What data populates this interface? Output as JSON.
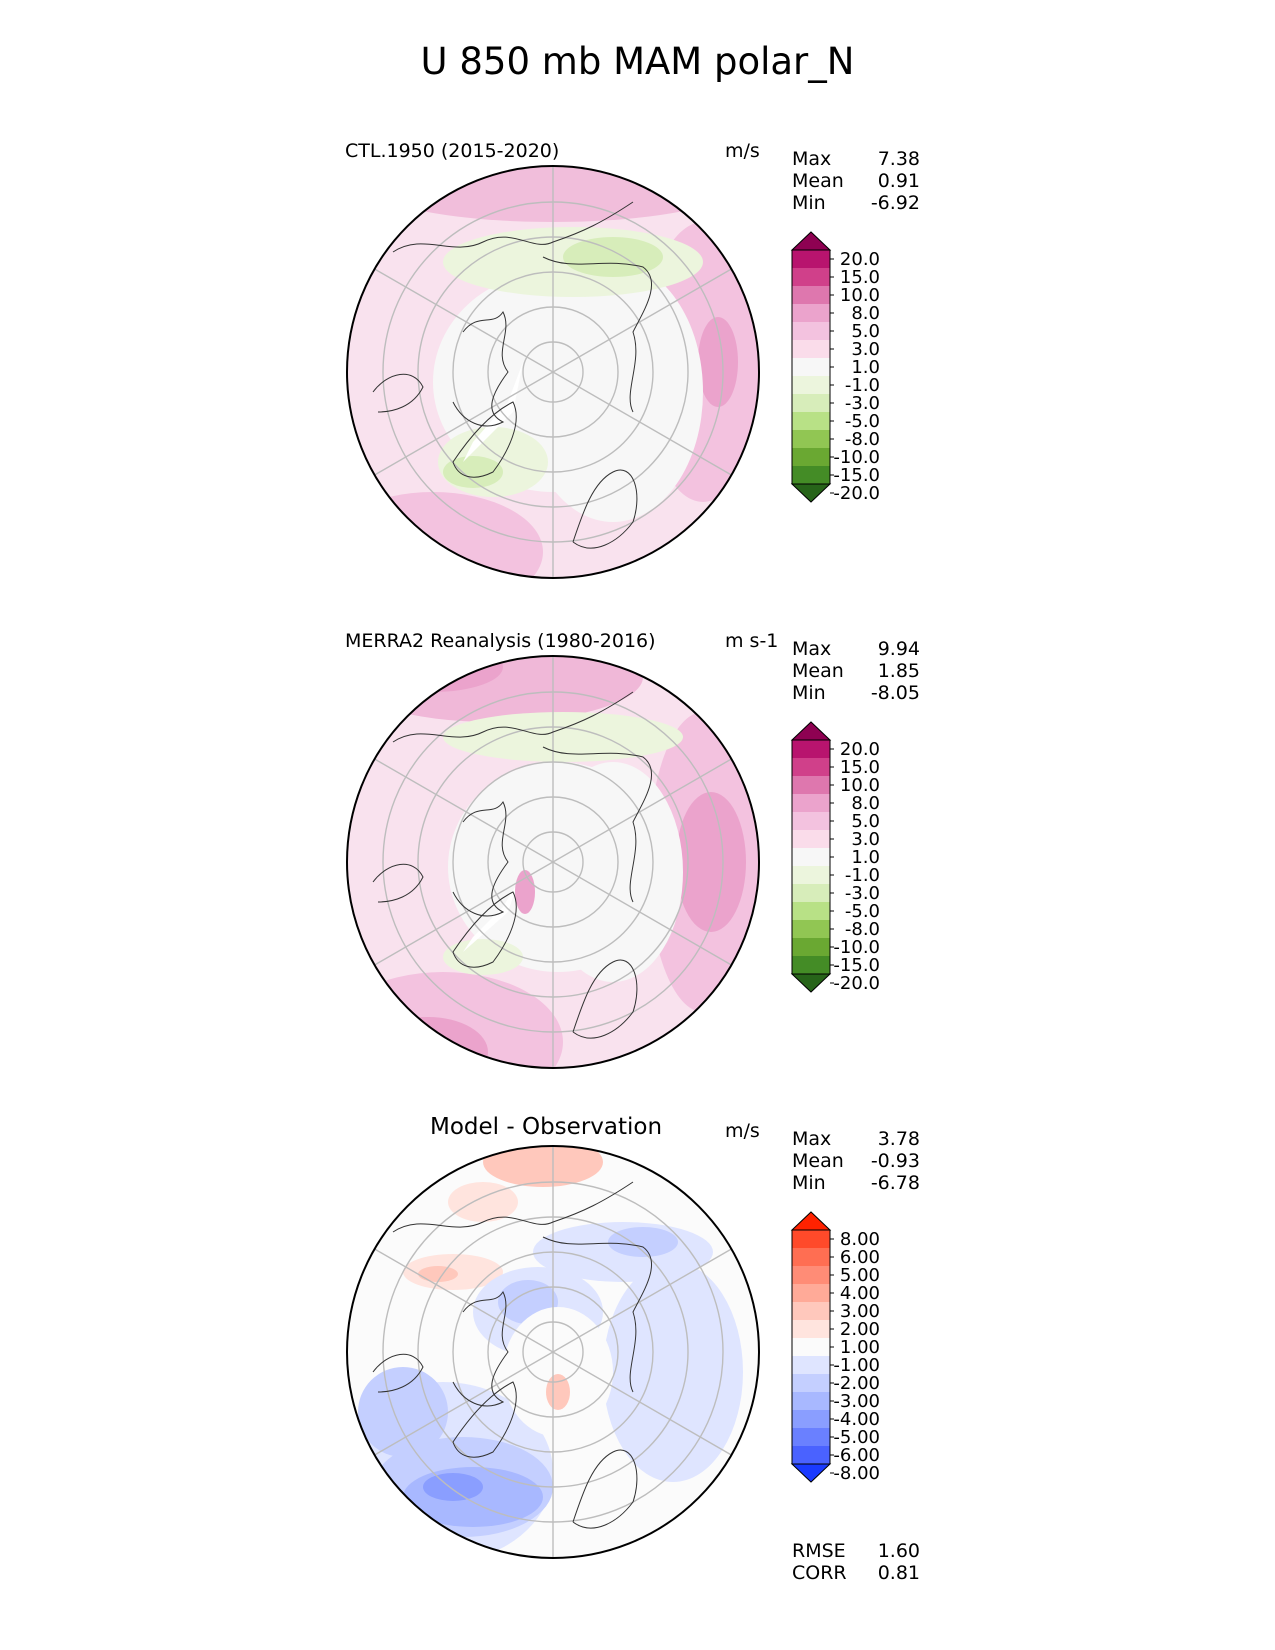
{
  "figure": {
    "title": "U 850 mb MAM polar_N"
  },
  "panels": [
    {
      "title": "CTL.1950 (2015-2020)",
      "units": "m/s",
      "stats": [
        {
          "label": "Max",
          "value": "7.38"
        },
        {
          "label": "Mean",
          "value": "0.91"
        },
        {
          "label": "Min",
          "value": "-6.92"
        }
      ],
      "colorbar": {
        "ticks": [
          "20.0",
          "15.0",
          "10.0",
          "8.0",
          "5.0",
          "3.0",
          "1.0",
          "-1.0",
          "-3.0",
          "-5.0",
          "-8.0",
          "-10.0",
          "-15.0",
          "-20.0"
        ],
        "colors": [
          "#8e0152",
          "#b8146e",
          "#d0408a",
          "#de77ae",
          "#eba3cc",
          "#f3c2df",
          "#fadcea",
          "#f7f7f7",
          "#ecf5dd",
          "#d7edba",
          "#b8e186",
          "#91c653",
          "#6aa832",
          "#448c26",
          "#276419"
        ]
      }
    },
    {
      "title": "MERRA2 Reanalysis (1980-2016)",
      "units": "m s-1",
      "stats": [
        {
          "label": "Max",
          "value": "9.94"
        },
        {
          "label": "Mean",
          "value": "1.85"
        },
        {
          "label": "Min",
          "value": "-8.05"
        }
      ],
      "colorbar": {
        "ticks": [
          "20.0",
          "15.0",
          "10.0",
          "8.0",
          "5.0",
          "3.0",
          "1.0",
          "-1.0",
          "-3.0",
          "-5.0",
          "-8.0",
          "-10.0",
          "-15.0",
          "-20.0"
        ],
        "colors": [
          "#8e0152",
          "#b8146e",
          "#d0408a",
          "#de77ae",
          "#eba3cc",
          "#f3c2df",
          "#fadcea",
          "#f7f7f7",
          "#ecf5dd",
          "#d7edba",
          "#b8e186",
          "#91c653",
          "#6aa832",
          "#448c26",
          "#276419"
        ]
      }
    },
    {
      "title": "Model - Observation",
      "units": "m/s",
      "stats": [
        {
          "label": "Max",
          "value": "3.78"
        },
        {
          "label": "Mean",
          "value": "-0.93"
        },
        {
          "label": "Min",
          "value": "-6.78"
        }
      ],
      "colorbar": {
        "ticks": [
          "8.00",
          "6.00",
          "5.00",
          "4.00",
          "3.00",
          "2.00",
          "1.00",
          "-1.00",
          "-2.00",
          "-3.00",
          "-4.00",
          "-5.00",
          "-6.00",
          "-8.00"
        ],
        "colors": [
          "#ff2200",
          "#ff4a2a",
          "#ff6e52",
          "#ff8c76",
          "#ffaa98",
          "#ffc8bc",
          "#ffe4de",
          "#fbfbfb",
          "#dfe5ff",
          "#c4cfff",
          "#a8b8ff",
          "#8a9eff",
          "#6a80ff",
          "#4a62ff",
          "#1a3aff"
        ]
      },
      "footer": [
        {
          "label": "RMSE",
          "value": "1.60"
        },
        {
          "label": "CORR",
          "value": "0.81"
        }
      ]
    }
  ]
}
